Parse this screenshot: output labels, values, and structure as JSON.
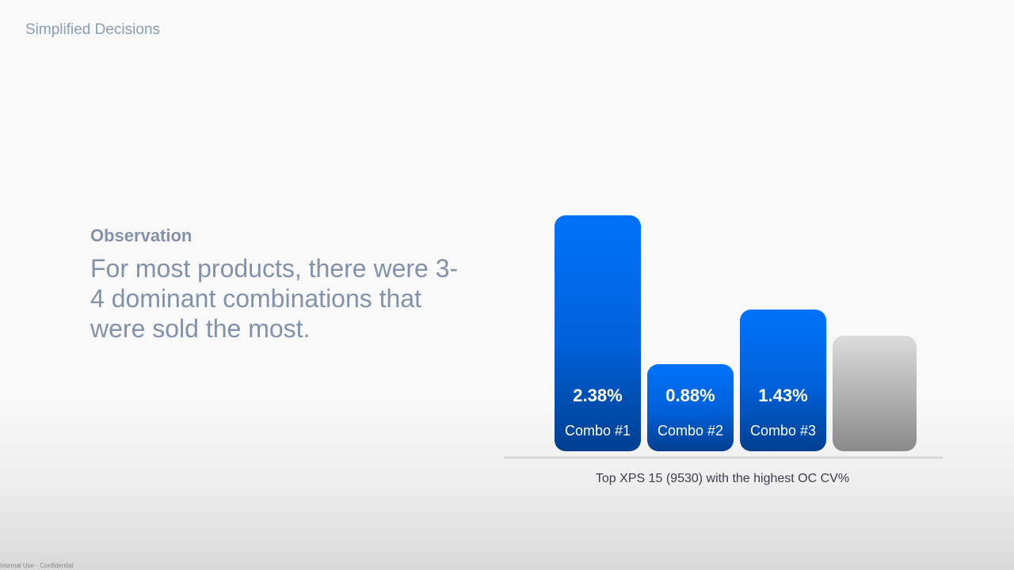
{
  "slide": {
    "title": "Simplified Decisions",
    "footer": "Internal Use - Confidential"
  },
  "observation": {
    "label": "Observation",
    "text": "For most products, there were 3-4 dominant combinations that were sold the most."
  },
  "chart_caption": "Top XPS 15 (9530) with the highest OC CV%",
  "colors": {
    "bar_top": "#0073fa",
    "bar_bottom": "#003f90",
    "other_top": "#dcdcdc",
    "other_bottom": "#8a8a8a",
    "baseline": "#d6d6d6",
    "text_muted": "#8392ab"
  },
  "chart_data": {
    "type": "bar",
    "categories": [
      "Combo #1",
      "Combo #2",
      "Combo #3",
      ""
    ],
    "values": [
      2.38,
      0.88,
      1.43,
      null
    ],
    "value_labels": [
      "2.38%",
      "0.88%",
      "1.43%",
      ""
    ],
    "title": "",
    "xlabel": "Top XPS 15 (9530) with the highest OC CV%",
    "ylabel": "",
    "grid": false
  }
}
